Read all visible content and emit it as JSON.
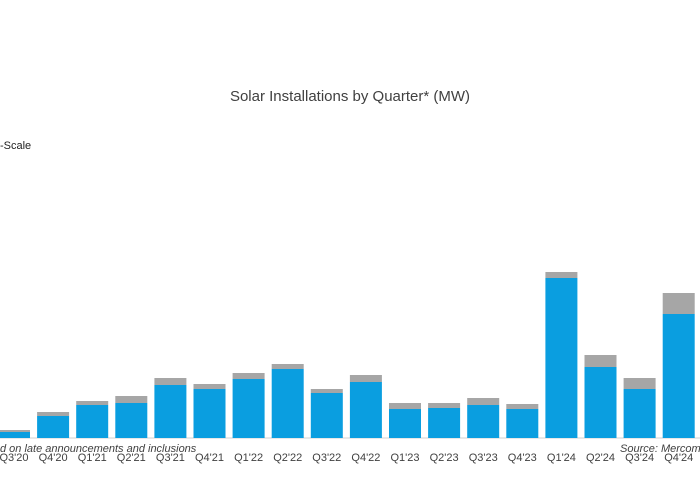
{
  "chart_data": {
    "type": "bar",
    "stacked": true,
    "title": "Solar Installations by Quarter* (MW)",
    "legend_text": "-Scale",
    "categories": [
      "Q3'20",
      "Q4'20",
      "Q1'21",
      "Q2'21",
      "Q3'21",
      "Q4'21",
      "Q1'22",
      "Q2'22",
      "Q3'22",
      "Q4'22",
      "Q1'23",
      "Q2'23",
      "Q3'23",
      "Q4'23",
      "Q1'24",
      "Q2'24",
      "Q3'24",
      "Q4'24"
    ],
    "series": [
      {
        "color": "#0a9ee0",
        "values": [
          6,
          22,
          33,
          35,
          53,
          49,
          59,
          69,
          45,
          56,
          29,
          30,
          33,
          29,
          160,
          71,
          49,
          124
        ]
      },
      {
        "color": "#a6a6a6",
        "values": [
          2,
          4,
          4,
          7,
          7,
          5,
          6,
          5,
          4,
          7,
          6,
          5,
          7,
          5,
          6,
          12,
          11,
          21
        ]
      }
    ],
    "ylim": [
      0,
      200
    ],
    "footnote": "d on late announcements and inclusions",
    "source": "Source: Mercom"
  }
}
